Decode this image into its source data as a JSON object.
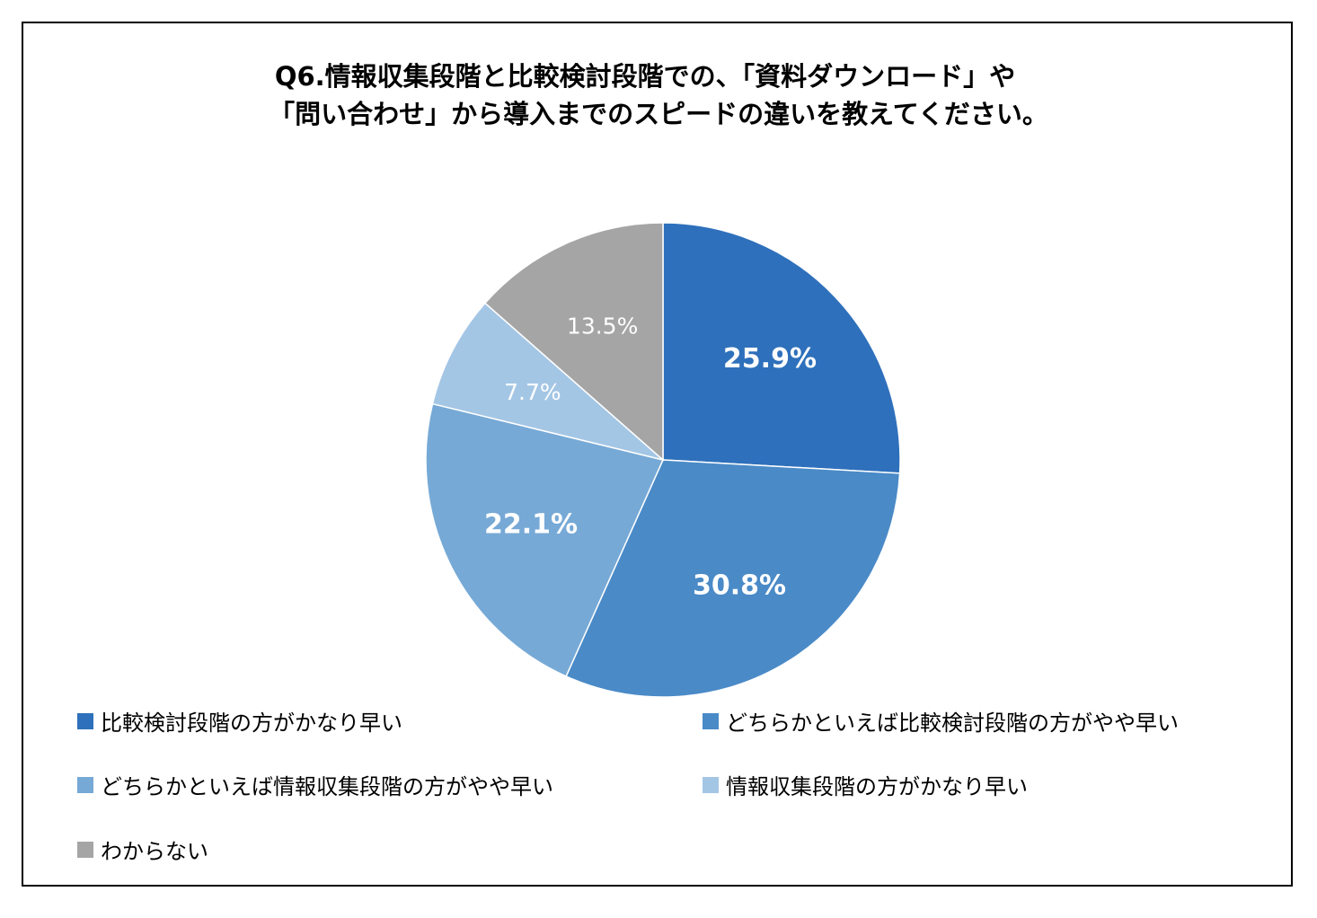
{
  "chart_data": {
    "type": "pie",
    "title_line1": "Q6.情報収集段階と比較検討段階での、「資料ダウンロード」や",
    "title_line2": "「問い合わせ」から導入までのスピードの違いを教えてください。",
    "slices": [
      {
        "label": "比較検討段階の方がかなり早い",
        "value": 25.9,
        "display": "25.9%",
        "color": "#2e70bb",
        "label_bold": true
      },
      {
        "label": "どちらかといえば比較検討段階の方がやや早い",
        "value": 30.8,
        "display": "30.8%",
        "color": "#4a8ac7",
        "label_bold": true
      },
      {
        "label": "どちらかといえば情報収集段階の方がやや早い",
        "value": 22.1,
        "display": "22.1%",
        "color": "#76a9d6",
        "label_bold": true
      },
      {
        "label": "情報収集段階の方がかなり早い",
        "value": 7.7,
        "display": "7.7%",
        "color": "#a4c6e5",
        "label_bold": false
      },
      {
        "label": "わからない",
        "value": 13.5,
        "display": "13.5%",
        "color": "#a5a5a5",
        "label_bold": false
      }
    ],
    "start_angle": "12 o'clock",
    "direction": "clockwise",
    "legend_position": "bottom"
  }
}
